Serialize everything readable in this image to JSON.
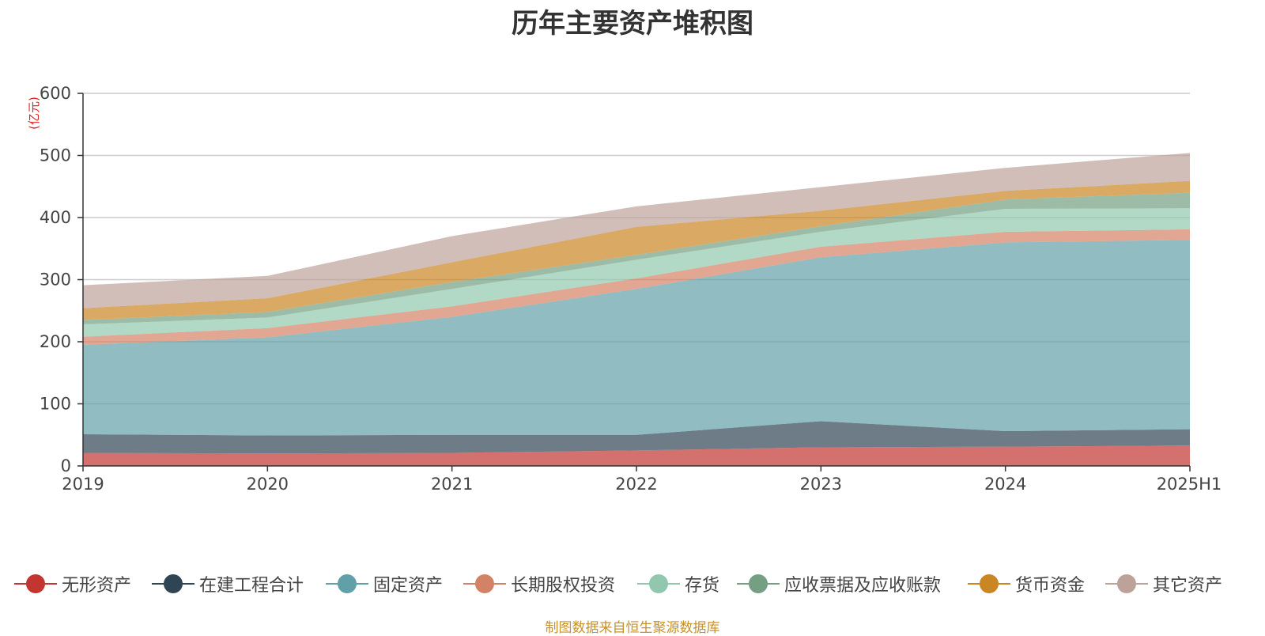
{
  "chart_data": {
    "type": "area",
    "stacked": true,
    "title": "历年主要资产堆积图",
    "unit_label": "(亿元)",
    "x": [
      "2019",
      "2020",
      "2021",
      "2022",
      "2023",
      "2024",
      "2025H1"
    ],
    "ylim": [
      0,
      600
    ],
    "yticks": [
      0,
      100,
      200,
      300,
      400,
      500,
      600
    ],
    "grid": true,
    "legend_position": "bottom",
    "series": [
      {
        "name": "无形资产",
        "color": "#c23531",
        "values": [
          21,
          20,
          21,
          25,
          30,
          31,
          33
        ]
      },
      {
        "name": "在建工程合计",
        "color": "#2f4554",
        "values": [
          30,
          29,
          29,
          25,
          42,
          25,
          26
        ]
      },
      {
        "name": "固定资产",
        "color": "#61a0a8",
        "values": [
          144,
          158,
          190,
          235,
          264,
          304,
          305
        ]
      },
      {
        "name": "长期股权投资",
        "color": "#d48265",
        "values": [
          13,
          15,
          17,
          17,
          17,
          17,
          17
        ]
      },
      {
        "name": "存货",
        "color": "#91c7ae",
        "values": [
          20,
          17,
          28,
          30,
          24,
          37,
          34
        ]
      },
      {
        "name": "应收票据及应收账款",
        "color": "#749f83",
        "values": [
          7,
          9,
          11,
          8,
          9,
          15,
          25
        ]
      },
      {
        "name": "货币资金",
        "color": "#ca8622",
        "values": [
          19,
          22,
          32,
          45,
          25,
          14,
          19
        ]
      },
      {
        "name": "其它资产",
        "color": "#bda29a",
        "values": [
          37,
          36,
          42,
          33,
          38,
          37,
          45
        ]
      }
    ]
  },
  "source_note": "制图数据来自恒生聚源数据库"
}
